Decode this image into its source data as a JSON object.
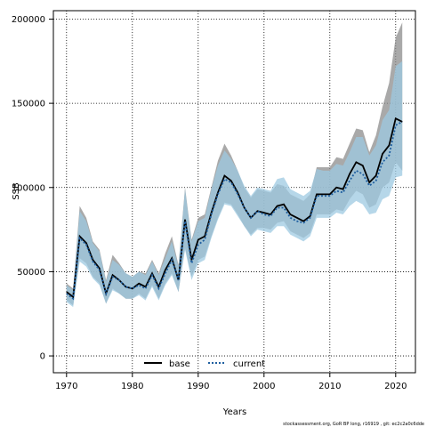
{
  "chart_data": {
    "type": "line",
    "title": "",
    "xlabel": "Years",
    "ylabel": "SSB",
    "xlim": [
      1968,
      2023
    ],
    "ylim": [
      -10000,
      205000
    ],
    "xticks": [
      1970,
      1980,
      1990,
      2000,
      2010,
      2020
    ],
    "yticks": [
      0,
      50000,
      100000,
      150000,
      200000
    ],
    "grid": true,
    "legend_position": "bottom-center",
    "colors": {
      "base_line": "#000000",
      "base_band": "#8c8c8c",
      "current_line": "#1f5fa0",
      "current_band": "#9ecae1",
      "overlap_band": "#a3c2d4"
    },
    "x": [
      1970,
      1971,
      1972,
      1973,
      1974,
      1975,
      1976,
      1977,
      1978,
      1979,
      1980,
      1981,
      1982,
      1983,
      1984,
      1985,
      1986,
      1987,
      1988,
      1989,
      1990,
      1991,
      1992,
      1993,
      1994,
      1995,
      1996,
      1997,
      1998,
      1999,
      2000,
      2001,
      2002,
      2003,
      2004,
      2005,
      2006,
      2007,
      2008,
      2009,
      2010,
      2011,
      2012,
      2013,
      2014,
      2015,
      2016,
      2017,
      2018,
      2019,
      2020,
      2021
    ],
    "series": [
      {
        "name": "base",
        "values": [
          38000,
          35000,
          71000,
          67000,
          57000,
          52000,
          37000,
          48000,
          45000,
          41000,
          40000,
          43000,
          41000,
          49000,
          41000,
          51000,
          58000,
          45000,
          81000,
          57000,
          69000,
          71000,
          85000,
          97000,
          107000,
          104000,
          97000,
          88000,
          82000,
          86000,
          85000,
          84000,
          89000,
          90000,
          84000,
          82000,
          80000,
          83000,
          96000,
          96000,
          96000,
          100000,
          99000,
          108000,
          115000,
          113000,
          103000,
          107000,
          120000,
          125000,
          141000,
          139000
        ],
        "lower": [
          33000,
          30000,
          58000,
          55000,
          47000,
          43000,
          31000,
          40000,
          37000,
          34000,
          34000,
          37000,
          34000,
          42000,
          34000,
          43000,
          49000,
          38000,
          64000,
          47000,
          57000,
          59000,
          71000,
          82000,
          91000,
          90000,
          84000,
          77000,
          72000,
          76000,
          76000,
          75000,
          79000,
          80000,
          74000,
          72000,
          70000,
          73000,
          84000,
          84000,
          84000,
          87000,
          86000,
          93000,
          98000,
          96000,
          88000,
          90000,
          100000,
          103000,
          115000,
          110000
        ],
        "upper": [
          43000,
          40000,
          89000,
          82000,
          68000,
          63000,
          45000,
          60000,
          55000,
          49000,
          47000,
          50000,
          49000,
          57000,
          49000,
          61000,
          71000,
          54000,
          100000,
          69000,
          82000,
          84000,
          100000,
          116000,
          126000,
          119000,
          110000,
          100000,
          94000,
          99000,
          98000,
          97000,
          102000,
          101000,
          96000,
          94000,
          92000,
          96000,
          112000,
          112000,
          112000,
          118000,
          117000,
          126000,
          135000,
          134000,
          121000,
          131000,
          148000,
          162000,
          189000,
          198000
        ]
      },
      {
        "name": "current",
        "values": [
          37000,
          34000,
          70000,
          66000,
          56000,
          51000,
          37000,
          47000,
          45000,
          41000,
          40000,
          42000,
          40000,
          48000,
          40000,
          49000,
          57000,
          45000,
          80000,
          55000,
          66000,
          69000,
          84000,
          96000,
          105000,
          103000,
          96000,
          88000,
          82000,
          86000,
          84000,
          83000,
          88000,
          88000,
          82000,
          80000,
          79000,
          82000,
          95000,
          95000,
          95000,
          98000,
          97000,
          104000,
          110000,
          108000,
          101000,
          104000,
          115000,
          119000,
          137000,
          139000
        ],
        "lower": [
          32000,
          29000,
          56000,
          53000,
          46000,
          42000,
          31000,
          39000,
          37000,
          34000,
          34000,
          36000,
          33000,
          41000,
          33000,
          42000,
          48000,
          38000,
          63000,
          45000,
          55000,
          57000,
          70000,
          81000,
          90000,
          89000,
          83000,
          77000,
          71000,
          75000,
          74000,
          73000,
          77000,
          77000,
          72000,
          70000,
          68000,
          71000,
          82000,
          82000,
          82000,
          85000,
          84000,
          89000,
          92000,
          90000,
          84000,
          85000,
          93000,
          95000,
          106000,
          107000
        ],
        "upper": [
          42000,
          39000,
          86000,
          80000,
          67000,
          62000,
          44000,
          57000,
          54000,
          49000,
          47000,
          50000,
          48000,
          56000,
          48000,
          58000,
          68000,
          53000,
          99000,
          68000,
          80000,
          82000,
          99000,
          113000,
          122000,
          117000,
          110000,
          101000,
          95000,
          100000,
          99000,
          98000,
          105000,
          106000,
          99000,
          97000,
          95000,
          98000,
          111000,
          110000,
          110000,
          114000,
          113000,
          121000,
          130000,
          130000,
          119000,
          125000,
          140000,
          146000,
          172000,
          175000
        ]
      }
    ]
  },
  "legend": {
    "base_label": "base",
    "current_label": "current"
  },
  "credit_text": "stockassessment.org, GoR BP long, r16919 , git: ec2c2a0c6dde"
}
